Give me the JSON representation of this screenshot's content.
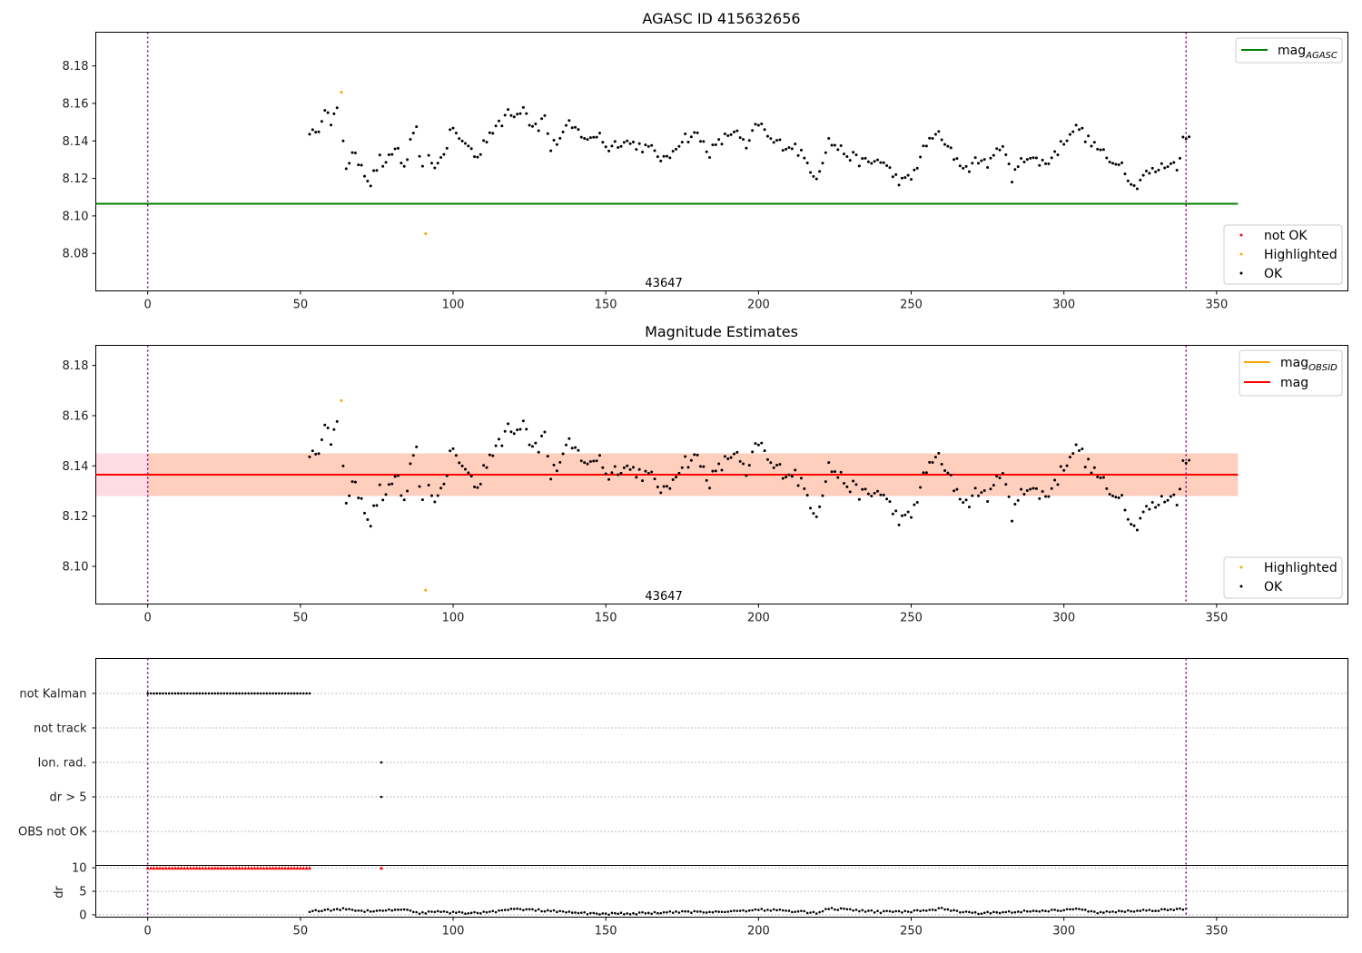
{
  "chart_data": [
    {
      "type": "scatter",
      "title": "AGASC ID 415632656",
      "xlim": [
        -17,
        393
      ],
      "ylim": [
        8.06,
        8.198
      ],
      "x_ticks": [
        0,
        50,
        100,
        150,
        200,
        250,
        300,
        350
      ],
      "y_ticks": [
        8.08,
        8.1,
        8.12,
        8.14,
        8.16,
        8.18
      ],
      "y_tick_labels": [
        "8.08",
        "8.10",
        "8.12",
        "8.14",
        "8.16",
        "8.18"
      ],
      "obsid_label": {
        "x": 169,
        "y": 8.064,
        "text": "43647"
      },
      "vlines": [
        0,
        340
      ],
      "lines": [
        {
          "name": "mag",
          "name_sub": "AGASC",
          "y": 8.1065,
          "x_range": [
            -17,
            357
          ],
          "color": "#008000"
        }
      ],
      "legend_lines": [
        {
          "name": "mag",
          "sub": "AGASC",
          "color": "#008000"
        }
      ],
      "legend_points": [
        {
          "name": "not OK",
          "color": "#ff0000"
        },
        {
          "name": "Highlighted",
          "color": "#ffa500"
        },
        {
          "name": "OK",
          "color": "#000000"
        }
      ],
      "highlighted": [
        [
          63.4,
          8.166
        ],
        [
          91,
          8.0905
        ]
      ],
      "ok_anchors": [
        [
          53,
          8.146
        ],
        [
          55,
          8.142
        ],
        [
          58,
          8.159
        ],
        [
          60,
          8.148
        ],
        [
          62,
          8.156
        ],
        [
          64,
          8.141
        ],
        [
          65,
          8.127
        ],
        [
          67,
          8.132
        ],
        [
          70,
          8.128
        ],
        [
          72,
          8.12
        ],
        [
          73,
          8.118
        ],
        [
          76,
          8.13
        ],
        [
          78,
          8.126
        ],
        [
          80,
          8.134
        ],
        [
          82,
          8.136
        ],
        [
          84,
          8.124
        ],
        [
          86,
          8.138
        ],
        [
          88,
          8.145
        ],
        [
          90,
          8.124
        ],
        [
          92,
          8.13
        ],
        [
          95,
          8.127
        ],
        [
          98,
          8.138
        ],
        [
          100,
          8.148
        ],
        [
          102,
          8.14
        ],
        [
          105,
          8.138
        ],
        [
          108,
          8.13
        ],
        [
          110,
          8.14
        ],
        [
          113,
          8.146
        ],
        [
          116,
          8.149
        ],
        [
          118,
          8.157
        ],
        [
          121,
          8.154
        ],
        [
          123,
          8.16
        ],
        [
          125,
          8.15
        ],
        [
          128,
          8.148
        ],
        [
          130,
          8.153
        ],
        [
          132,
          8.136
        ],
        [
          135,
          8.142
        ],
        [
          138,
          8.148
        ],
        [
          141,
          8.145
        ],
        [
          145,
          8.14
        ],
        [
          148,
          8.145
        ],
        [
          150,
          8.136
        ],
        [
          155,
          8.14
        ],
        [
          160,
          8.138
        ],
        [
          165,
          8.135
        ],
        [
          170,
          8.129
        ],
        [
          173,
          8.138
        ],
        [
          176,
          8.142
        ],
        [
          180,
          8.143
        ],
        [
          184,
          8.134
        ],
        [
          188,
          8.14
        ],
        [
          192,
          8.146
        ],
        [
          196,
          8.136
        ],
        [
          200,
          8.15
        ],
        [
          204,
          8.14
        ],
        [
          208,
          8.138
        ],
        [
          212,
          8.137
        ],
        [
          216,
          8.128
        ],
        [
          219,
          8.121
        ],
        [
          223,
          8.14
        ],
        [
          228,
          8.134
        ],
        [
          232,
          8.13
        ],
        [
          236,
          8.128
        ],
        [
          240,
          8.13
        ],
        [
          244,
          8.122
        ],
        [
          247,
          8.118
        ],
        [
          250,
          8.12
        ],
        [
          254,
          8.135
        ],
        [
          258,
          8.145
        ],
        [
          260,
          8.14
        ],
        [
          264,
          8.132
        ],
        [
          268,
          8.125
        ],
        [
          272,
          8.13
        ],
        [
          276,
          8.128
        ],
        [
          280,
          8.14
        ],
        [
          283,
          8.118
        ],
        [
          286,
          8.132
        ],
        [
          290,
          8.13
        ],
        [
          294,
          8.128
        ],
        [
          298,
          8.135
        ],
        [
          302,
          8.145
        ],
        [
          305,
          8.147
        ],
        [
          308,
          8.14
        ],
        [
          312,
          8.135
        ],
        [
          315,
          8.128
        ],
        [
          318,
          8.13
        ],
        [
          320,
          8.125
        ],
        [
          323,
          8.115
        ],
        [
          326,
          8.122
        ],
        [
          330,
          8.124
        ],
        [
          334,
          8.128
        ],
        [
          337,
          8.127
        ],
        [
          339,
          8.14
        ],
        [
          341,
          8.142
        ]
      ]
    },
    {
      "type": "scatter",
      "title": "Magnitude Estimates",
      "xlim": [
        -17,
        393
      ],
      "ylim": [
        8.085,
        8.188
      ],
      "x_ticks": [
        0,
        50,
        100,
        150,
        200,
        250,
        300,
        350
      ],
      "y_ticks": [
        8.1,
        8.12,
        8.14,
        8.16,
        8.18
      ],
      "y_tick_labels": [
        "8.10",
        "8.12",
        "8.14",
        "8.16",
        "8.18"
      ],
      "obsid_label": {
        "x": 169,
        "y": 8.088,
        "text": "43647"
      },
      "vlines": [
        0,
        340
      ],
      "band": {
        "y_low": 8.128,
        "y_high": 8.145,
        "x_range": [
          -17,
          357
        ]
      },
      "band_inner": {
        "y_low": 8.128,
        "y_high": 8.145,
        "x_range": [
          -17,
          357
        ]
      },
      "lines": [
        {
          "name": "mag",
          "y": 8.1365,
          "x_range": [
            -17,
            357
          ],
          "color": "#ff0000"
        }
      ],
      "legend_lines": [
        {
          "name": "mag",
          "sub": "OBSID",
          "color": "#ffa500"
        },
        {
          "name": "mag",
          "sub": "",
          "color": "#ff0000"
        }
      ],
      "legend_points": [
        {
          "name": "Highlighted",
          "color": "#ffa500"
        },
        {
          "name": "OK",
          "color": "#000000"
        }
      ],
      "highlighted": [
        [
          63.4,
          8.166
        ],
        [
          91,
          8.0905
        ]
      ]
    },
    {
      "type": "scatter",
      "title": "",
      "xlim": [
        -17,
        393
      ],
      "x_ticks": [
        0,
        50,
        100,
        150,
        200,
        250,
        300,
        350
      ],
      "categories": [
        "not Kalman",
        "not track",
        "Ion. rad.",
        "dr > 5",
        "OBS not OK"
      ],
      "flags": {
        "not Kalman": {
          "x_range": [
            0,
            53
          ],
          "step": 1
        },
        "Ion. rad.": {
          "x": [
            76.5
          ]
        },
        "dr > 5": {
          "x": [
            76.5
          ]
        }
      },
      "dr_ylim": [
        -0.5,
        10.5
      ],
      "dr_y_ticks": [
        0,
        5,
        10
      ],
      "dr_y_tick_labels": [
        "0",
        "5",
        "10"
      ],
      "dr_label": "dr",
      "dr_capped": {
        "x_range": [
          0,
          53
        ],
        "step": 1,
        "extra_x": [
          76.5
        ],
        "value": 10
      },
      "dr_ok_anchors": [
        [
          53,
          0.8
        ],
        [
          60,
          1.0
        ],
        [
          65,
          1.3
        ],
        [
          70,
          0.8
        ],
        [
          80,
          1.0
        ],
        [
          85,
          1.2
        ],
        [
          88,
          0.4
        ],
        [
          95,
          0.6
        ],
        [
          100,
          0.5
        ],
        [
          105,
          0.3
        ],
        [
          115,
          0.8
        ],
        [
          120,
          1.2
        ],
        [
          130,
          0.9
        ],
        [
          140,
          0.4
        ],
        [
          150,
          0.2
        ],
        [
          160,
          0.3
        ],
        [
          170,
          0.5
        ],
        [
          180,
          0.6
        ],
        [
          190,
          0.7
        ],
        [
          200,
          1.1
        ],
        [
          205,
          1.0
        ],
        [
          215,
          0.6
        ],
        [
          220,
          0.4
        ],
        [
          223,
          1.4
        ],
        [
          230,
          1.0
        ],
        [
          240,
          0.6
        ],
        [
          250,
          0.7
        ],
        [
          260,
          1.3
        ],
        [
          270,
          0.3
        ],
        [
          280,
          0.6
        ],
        [
          290,
          0.8
        ],
        [
          300,
          1.0
        ],
        [
          305,
          1.2
        ],
        [
          310,
          0.5
        ],
        [
          320,
          0.7
        ],
        [
          330,
          1.0
        ],
        [
          340,
          1.2
        ]
      ],
      "vlines": [
        0,
        340
      ]
    }
  ]
}
